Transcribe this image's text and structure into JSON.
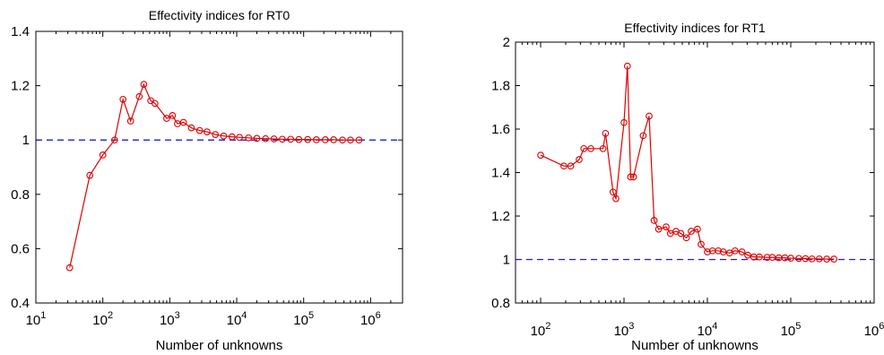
{
  "chart_data": [
    {
      "type": "line",
      "title": "Effectivity indices for RT0",
      "xlabel": "Number of unknowns",
      "ylabel": "",
      "xscale": "log",
      "xlim": [
        10,
        3000000
      ],
      "ylim": [
        0.4,
        1.4
      ],
      "x_tick_labels": [
        {
          "base": "10",
          "exp": "1"
        },
        {
          "base": "10",
          "exp": "2"
        },
        {
          "base": "10",
          "exp": "3"
        },
        {
          "base": "10",
          "exp": "4"
        },
        {
          "base": "10",
          "exp": "5"
        },
        {
          "base": "10",
          "exp": "6"
        }
      ],
      "y_ticks": [
        "0.4",
        "0.6",
        "0.8",
        "1",
        "1.2",
        "1.4"
      ],
      "reference_line": {
        "y": 1,
        "color": "#1f1fc8",
        "style": "dashed"
      },
      "series": [
        {
          "color": "#e00000",
          "marker": "circle",
          "x": [
            32,
            64,
            100,
            150,
            200,
            260,
            350,
            410,
            520,
            600,
            900,
            1100,
            1300,
            1600,
            2100,
            2800,
            3600,
            4800,
            6400,
            8500,
            11000,
            15000,
            20000,
            27000,
            36000,
            48000,
            64000,
            85000,
            115000,
            155000,
            210000,
            280000,
            380000,
            500000,
            670000
          ],
          "y": [
            0.53,
            0.87,
            0.945,
            1.0,
            1.15,
            1.07,
            1.16,
            1.205,
            1.145,
            1.135,
            1.08,
            1.09,
            1.06,
            1.065,
            1.045,
            1.035,
            1.03,
            1.02,
            1.015,
            1.012,
            1.01,
            1.008,
            1.006,
            1.005,
            1.004,
            1.003,
            1.003,
            1.002,
            1.002,
            1.001,
            1.001,
            1.001,
            1.0,
            1.0,
            1.0
          ]
        }
      ]
    },
    {
      "type": "line",
      "title": "Effectivity indices for RT1",
      "xlabel": "Number of unknowns",
      "ylabel": "",
      "xscale": "log",
      "xlim": [
        50,
        1000000
      ],
      "ylim": [
        0.8,
        2.0
      ],
      "x_tick_labels": [
        {
          "base": "10",
          "exp": "2"
        },
        {
          "base": "10",
          "exp": "3"
        },
        {
          "base": "10",
          "exp": "4"
        },
        {
          "base": "10",
          "exp": "5"
        },
        {
          "base": "10",
          "exp": "6"
        }
      ],
      "y_ticks": [
        "0.8",
        "1",
        "1.2",
        "1.4",
        "1.6",
        "1.8",
        "2"
      ],
      "reference_line": {
        "y": 1,
        "color": "#1f1fc8",
        "style": "dashed"
      },
      "series": [
        {
          "color": "#e00000",
          "marker": "circle",
          "x": [
            100,
            190,
            230,
            290,
            330,
            400,
            560,
            600,
            740,
            800,
            1000,
            1100,
            1200,
            1300,
            1700,
            2000,
            2300,
            2600,
            3200,
            3600,
            4200,
            4800,
            5600,
            6400,
            7600,
            8400,
            10000,
            11500,
            13500,
            15500,
            18500,
            21500,
            26000,
            30500,
            36000,
            42000,
            52000,
            60000,
            72000,
            85000,
            100000,
            125000,
            150000,
            180000,
            220000,
            270000,
            330000
          ],
          "y": [
            1.48,
            1.43,
            1.43,
            1.46,
            1.51,
            1.51,
            1.51,
            1.58,
            1.31,
            1.28,
            1.63,
            1.89,
            1.38,
            1.38,
            1.57,
            1.66,
            1.18,
            1.14,
            1.15,
            1.12,
            1.13,
            1.12,
            1.1,
            1.13,
            1.14,
            1.07,
            1.035,
            1.04,
            1.04,
            1.035,
            1.03,
            1.04,
            1.035,
            1.02,
            1.012,
            1.012,
            1.01,
            1.01,
            1.008,
            1.008,
            1.006,
            1.005,
            1.004,
            1.003,
            1.003,
            1.002,
            1.002
          ]
        }
      ]
    }
  ]
}
